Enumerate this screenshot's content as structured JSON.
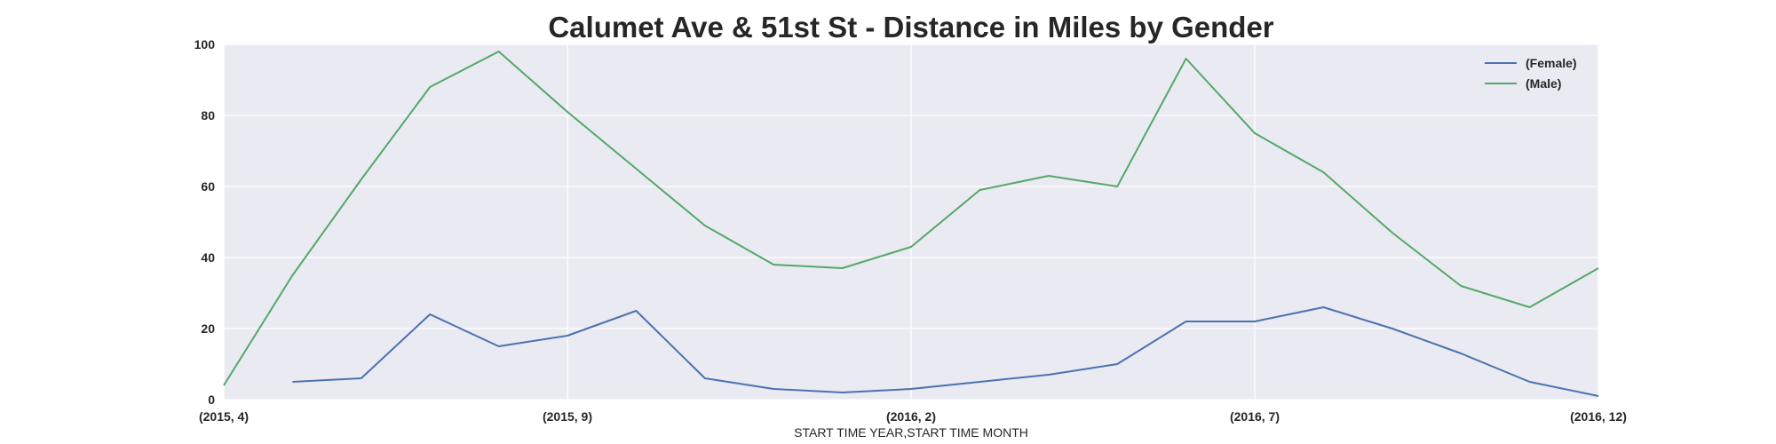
{
  "chart_data": {
    "type": "line",
    "title": "Calumet Ave & 51st St - Distance in Miles by Gender",
    "xlabel": "START TIME YEAR,START TIME MONTH",
    "ylabel": "",
    "x": [
      "(2015, 4)",
      "(2015, 5)",
      "(2015, 6)",
      "(2015, 7)",
      "(2015, 8)",
      "(2015, 9)",
      "(2015, 10)",
      "(2015, 11)",
      "(2015, 12)",
      "(2016, 1)",
      "(2016, 2)",
      "(2016, 3)",
      "(2016, 4)",
      "(2016, 5)",
      "(2016, 6)",
      "(2016, 7)",
      "(2016, 8)",
      "(2016, 9)",
      "(2016, 10)",
      "(2016, 11)",
      "(2016, 12)"
    ],
    "xtick_labels": [
      "(2015, 4)",
      "(2015, 9)",
      "(2016, 2)",
      "(2016, 7)",
      "(2016, 12)"
    ],
    "xtick_indices": [
      0,
      5,
      10,
      15,
      20
    ],
    "yticks": [
      0,
      20,
      40,
      60,
      80,
      100
    ],
    "ylim": [
      0,
      100
    ],
    "grid": true,
    "legend_position": "top-right",
    "series": [
      {
        "name": "(Female)",
        "color": "#4c72b0",
        "values": [
          null,
          5,
          6,
          24,
          15,
          18,
          25,
          6,
          3,
          2,
          3,
          5,
          7,
          10,
          22,
          22,
          26,
          20,
          13,
          5,
          1
        ]
      },
      {
        "name": "(Male)",
        "color": "#55a868",
        "values": [
          4,
          35,
          62,
          88,
          98,
          81,
          65,
          49,
          38,
          37,
          43,
          59,
          63,
          60,
          96,
          75,
          64,
          47,
          32,
          26,
          37
        ]
      }
    ]
  }
}
